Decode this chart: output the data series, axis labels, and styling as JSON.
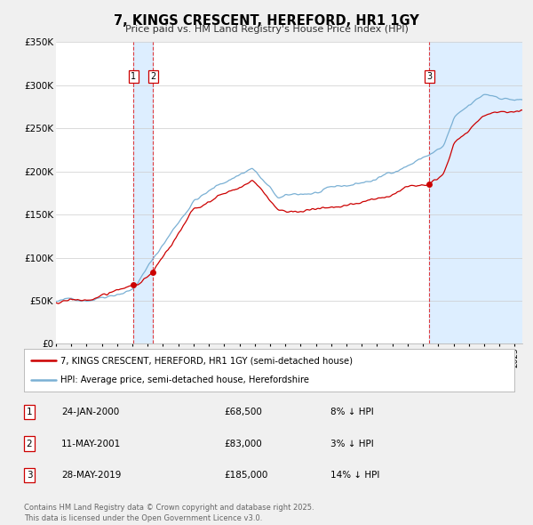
{
  "title": "7, KINGS CRESCENT, HEREFORD, HR1 1GY",
  "subtitle": "Price paid vs. HM Land Registry's House Price Index (HPI)",
  "legend_line1": "7, KINGS CRESCENT, HEREFORD, HR1 1GY (semi-detached house)",
  "legend_line2": "HPI: Average price, semi-detached house, Herefordshire",
  "property_color": "#cc0000",
  "hpi_color": "#7ab0d4",
  "shade_color": "#ddeeff",
  "background_color": "#f0f0f0",
  "plot_bg_color": "#ffffff",
  "grid_color": "#cccccc",
  "transaction_display": [
    {
      "label": "1",
      "date_str": "24-JAN-2000",
      "price_str": "£68,500",
      "pct_str": "8% ↓ HPI"
    },
    {
      "label": "2",
      "date_str": "11-MAY-2001",
      "price_str": "£83,000",
      "pct_str": "3% ↓ HPI"
    },
    {
      "label": "3",
      "date_str": "28-MAY-2019",
      "price_str": "£185,000",
      "pct_str": "14% ↓ HPI"
    }
  ],
  "ylim": [
    0,
    350000
  ],
  "yticks": [
    0,
    50000,
    100000,
    150000,
    200000,
    250000,
    300000,
    350000
  ],
  "ytick_labels": [
    "£0",
    "£50K",
    "£100K",
    "£150K",
    "£200K",
    "£250K",
    "£300K",
    "£350K"
  ],
  "xstart": 1995.0,
  "xend": 2025.5,
  "footer": "Contains HM Land Registry data © Crown copyright and database right 2025.\nThis data is licensed under the Open Government Licence v3.0."
}
